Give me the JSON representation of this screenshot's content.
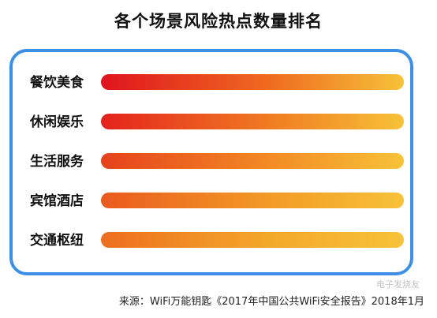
{
  "chart_data": {
    "type": "bar",
    "orientation": "horizontal",
    "title": "各个场景风险热点数量排名",
    "categories": [
      "餐饮美食",
      "休闲娱乐",
      "生活服务",
      "宾馆酒店",
      "交通枢纽"
    ],
    "values": [
      100,
      100,
      100,
      100,
      100
    ],
    "value_axis_shown": false,
    "gradient": {
      "start": "#e0141e",
      "middle": "#ef7a1f",
      "end": "#f7c238"
    }
  },
  "source": "来源：WiFi万能钥匙《2017年中国公共WiFi安全报告》2018年1月",
  "watermark": "电子发烧友",
  "colors": {
    "frame": "#3d8fe6",
    "text": "#111111"
  }
}
